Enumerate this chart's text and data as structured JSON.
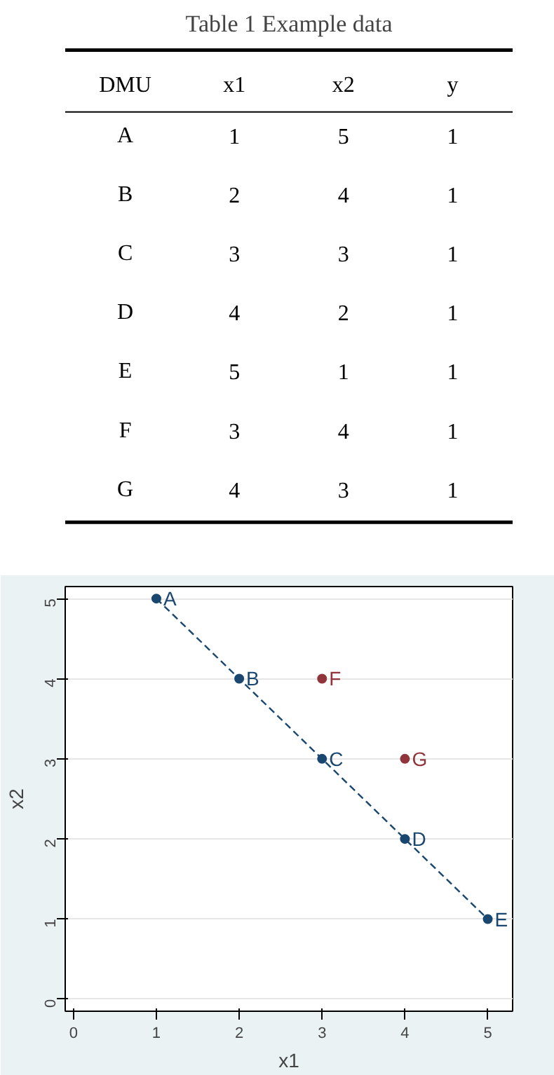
{
  "chart_data": [
    {
      "type": "heatmap",
      "title": "Table 1 Example data",
      "ylabel": "DMU",
      "categories": [
        "x1",
        "x2",
        "y"
      ],
      "y_categories": [
        "A",
        "B",
        "C",
        "D",
        "E",
        "F",
        "G"
      ],
      "cells": [
        [
          1,
          5,
          1
        ],
        [
          2,
          4,
          1
        ],
        [
          3,
          3,
          1
        ],
        [
          4,
          2,
          1
        ],
        [
          5,
          1,
          1
        ],
        [
          3,
          4,
          1
        ],
        [
          4,
          3,
          1
        ]
      ],
      "data_labels": true
    },
    {
      "type": "scatter",
      "xlabel": "x1",
      "ylabel": "x2",
      "xlim": [
        -0.1,
        5.3
      ],
      "ylim": [
        -0.15,
        5.15
      ],
      "xticks": [
        0,
        1,
        2,
        3,
        4,
        5
      ],
      "yticks": [
        0,
        1,
        2,
        3,
        4,
        5
      ],
      "grid": "y",
      "series": [
        {
          "type": "line",
          "color": "#1a476f",
          "x": [
            1,
            2,
            3,
            4,
            5
          ],
          "values": [
            5,
            4,
            3,
            2,
            1
          ],
          "marker": "circle",
          "line_style": "dashed"
        },
        {
          "type": "scatter",
          "color": "#90353b",
          "x": [
            3,
            4
          ],
          "values": [
            4,
            3
          ],
          "marker": "circle"
        }
      ],
      "annotations": [
        {
          "text": "A",
          "x": 1,
          "y": 5
        },
        {
          "text": "B",
          "x": 2,
          "y": 4
        },
        {
          "text": "C",
          "x": 3,
          "y": 3
        },
        {
          "text": "D",
          "x": 4,
          "y": 2
        },
        {
          "text": "E",
          "x": 5,
          "y": 1
        },
        {
          "text": "F",
          "x": 3,
          "y": 4
        },
        {
          "text": "G",
          "x": 4,
          "y": 3
        }
      ]
    }
  ]
}
